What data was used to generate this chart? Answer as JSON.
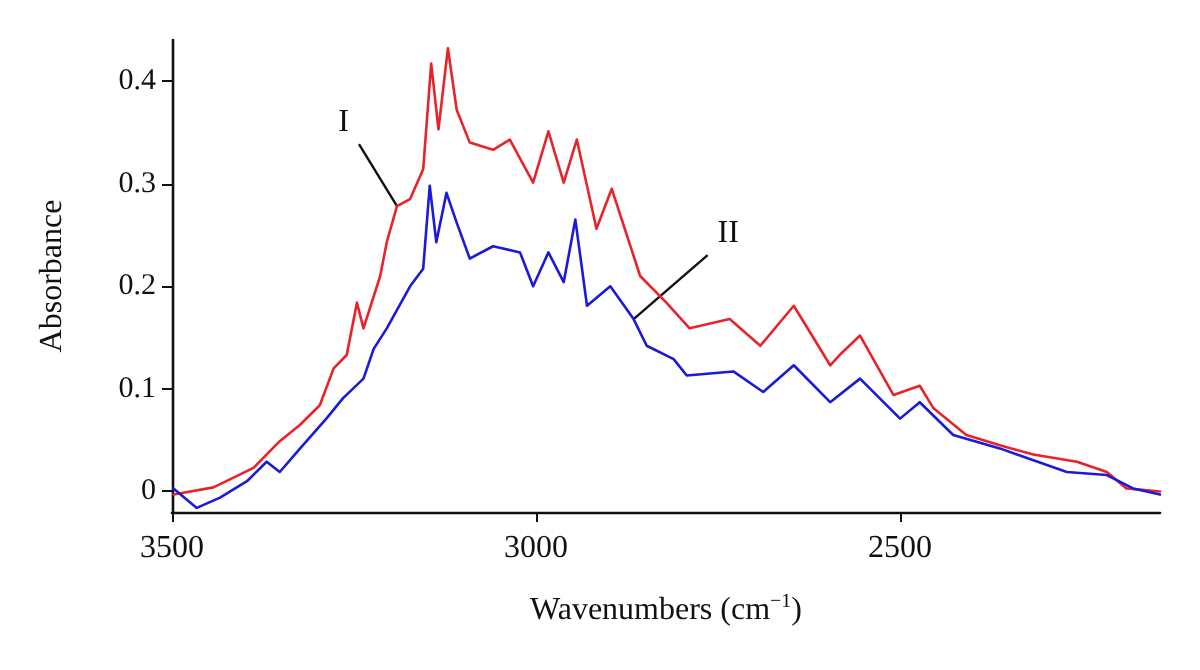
{
  "chart_data": {
    "type": "line",
    "xlabel": "Wavenumbers (cm$^{−1}$)",
    "ylabel": "Absorbance",
    "xlim": [
      3500,
      2143
    ],
    "xticks": [
      3500,
      3000,
      2500
    ],
    "ylim": [
      -0.02,
      0.44
    ],
    "yticks": [
      0,
      0.1,
      0.2,
      0.3,
      0.4
    ],
    "grid": false,
    "marker": "none",
    "line_style": "solid",
    "annotations": [
      {
        "text": "I",
        "x": 3191,
        "y": 0.278
      },
      {
        "text": "II",
        "x": 2866,
        "y": 0.168
      }
    ],
    "series": [
      {
        "color": "#e8232a",
        "x": [
          3498,
          3443,
          3388,
          3352,
          3324,
          3297,
          3278,
          3260,
          3246,
          3237,
          3214,
          3205,
          3191,
          3173,
          3155,
          3144,
          3134,
          3121,
          3109,
          3091,
          3059,
          3036,
          3004,
          2983,
          2962,
          2944,
          2917,
          2896,
          2857,
          2821,
          2789,
          2734,
          2692,
          2646,
          2596,
          2583,
          2555,
          2509,
          2473,
          2454,
          2409,
          2363,
          2317,
          2257,
          2216,
          2189,
          2143
        ],
        "values": [
          -0.003,
          0.004,
          0.023,
          0.049,
          0.065,
          0.084,
          0.12,
          0.133,
          0.184,
          0.159,
          0.21,
          0.243,
          0.278,
          0.285,
          0.314,
          0.417,
          0.353,
          0.432,
          0.372,
          0.34,
          0.333,
          0.343,
          0.301,
          0.351,
          0.301,
          0.343,
          0.256,
          0.295,
          0.21,
          0.184,
          0.159,
          0.168,
          0.142,
          0.181,
          0.123,
          0.133,
          0.152,
          0.094,
          0.103,
          0.081,
          0.055,
          0.045,
          0.036,
          0.029,
          0.019,
          0.003,
          0
        ]
      },
      {
        "color": "#1a1adb",
        "x": [
          3498,
          3466,
          3434,
          3397,
          3370,
          3352,
          3324,
          3288,
          3265,
          3237,
          3223,
          3205,
          3173,
          3155,
          3146,
          3137,
          3123,
          3109,
          3091,
          3059,
          3022,
          3004,
          2983,
          2962,
          2946,
          2930,
          2898,
          2866,
          2848,
          2811,
          2793,
          2729,
          2688,
          2646,
          2596,
          2555,
          2500,
          2473,
          2427,
          2363,
          2271,
          2216,
          2180,
          2143
        ],
        "values": [
          0.003,
          -0.016,
          -0.006,
          0.01,
          0.029,
          0.019,
          0.042,
          0.071,
          0.091,
          0.11,
          0.139,
          0.159,
          0.2,
          0.217,
          0.298,
          0.243,
          0.291,
          0.262,
          0.227,
          0.239,
          0.233,
          0.2,
          0.233,
          0.204,
          0.265,
          0.181,
          0.2,
          0.168,
          0.142,
          0.129,
          0.113,
          0.117,
          0.097,
          0.123,
          0.087,
          0.11,
          0.071,
          0.087,
          0.055,
          0.042,
          0.019,
          0.016,
          0.003,
          -0.003
        ]
      }
    ]
  }
}
